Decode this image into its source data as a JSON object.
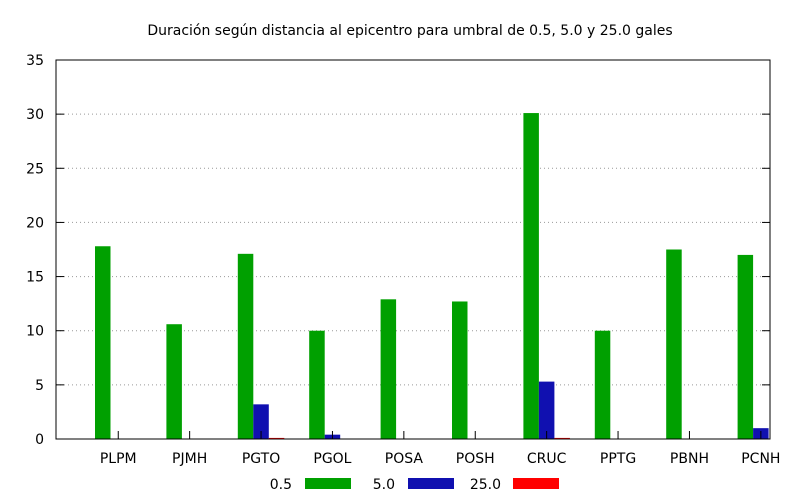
{
  "chart_data": {
    "type": "bar",
    "title": "Duración según distancia al epicentro para umbral de 0.5, 5.0 y 25.0 gales",
    "xlabel": "",
    "ylabel": "",
    "ylim": [
      0,
      35
    ],
    "yticks": [
      "0",
      "5",
      "10",
      "15",
      "20",
      "25",
      "30",
      "35"
    ],
    "grid": true,
    "legend_position": "bottom-center",
    "categories": [
      "PLPM",
      "PJMH",
      "PGTO",
      "PGOL",
      "POSA",
      "POSH",
      "CRUC",
      "PPTG",
      "PBNH",
      "PCNH"
    ],
    "series": [
      {
        "name": "0.5",
        "color": "#00a000",
        "values": [
          17.8,
          10.6,
          17.1,
          10.0,
          12.9,
          12.7,
          30.1,
          10.0,
          17.5,
          17.0
        ]
      },
      {
        "name": "5.0",
        "color": "#1010b0",
        "values": [
          0,
          0,
          3.2,
          0.4,
          0,
          0,
          5.3,
          0,
          0,
          1.0
        ]
      },
      {
        "name": "25.0",
        "color": "#ff0000",
        "values": [
          0,
          0,
          0.1,
          0,
          0,
          0,
          0.1,
          0,
          0,
          0
        ]
      }
    ]
  }
}
